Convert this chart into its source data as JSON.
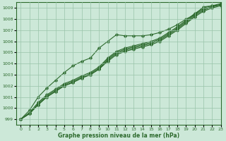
{
  "x": [
    0,
    1,
    2,
    3,
    4,
    5,
    6,
    7,
    8,
    9,
    10,
    11,
    12,
    13,
    14,
    15,
    16,
    17,
    18,
    19,
    20,
    21,
    22,
    23
  ],
  "line_high": [
    999.0,
    999.8,
    1001.0,
    1001.8,
    1002.5,
    1003.2,
    1003.8,
    1004.2,
    1004.5,
    1005.4,
    1006.0,
    1006.6,
    1006.5,
    1006.5,
    1006.5,
    1006.6,
    1006.8,
    1007.1,
    1007.5,
    1008.0,
    1008.4,
    1009.1,
    1009.2,
    1009.3
  ],
  "line_a": [
    999.0,
    999.5,
    1000.3,
    1001.0,
    1001.5,
    1002.0,
    1002.3,
    1002.7,
    1003.0,
    1003.5,
    1004.2,
    1004.8,
    1005.1,
    1005.3,
    1005.5,
    1005.7,
    1006.0,
    1006.5,
    1007.0,
    1007.6,
    1008.2,
    1008.7,
    1009.0,
    1009.2
  ],
  "line_b": [
    999.0,
    999.5,
    1000.3,
    1001.0,
    1001.5,
    1002.0,
    1002.3,
    1002.7,
    1003.0,
    1003.5,
    1004.3,
    1004.9,
    1005.2,
    1005.4,
    1005.6,
    1005.8,
    1006.1,
    1006.6,
    1007.1,
    1007.7,
    1008.3,
    1008.8,
    1009.1,
    1009.3
  ],
  "line_c": [
    999.0,
    999.5,
    1000.4,
    1001.1,
    1001.6,
    1002.1,
    1002.4,
    1002.8,
    1003.1,
    1003.6,
    1004.4,
    1005.0,
    1005.3,
    1005.5,
    1005.7,
    1005.9,
    1006.2,
    1006.7,
    1007.2,
    1007.8,
    1008.4,
    1008.9,
    1009.1,
    1009.3
  ],
  "line_d": [
    999.0,
    999.6,
    1000.5,
    1001.2,
    1001.7,
    1002.2,
    1002.5,
    1002.9,
    1003.2,
    1003.7,
    1004.5,
    1005.1,
    1005.4,
    1005.6,
    1005.8,
    1006.0,
    1006.3,
    1006.8,
    1007.3,
    1007.9,
    1008.5,
    1009.0,
    1009.2,
    1009.4
  ],
  "line_color": "#2d6a2d",
  "bg_color": "#cce8d8",
  "grid_color": "#99c4aa",
  "xlabel": "Graphe pression niveau de la mer (hPa)",
  "ylim": [
    998.5,
    1009.5
  ],
  "xlim": [
    -0.5,
    23
  ],
  "yticks": [
    999,
    1000,
    1001,
    1002,
    1003,
    1004,
    1005,
    1006,
    1007,
    1008,
    1009
  ],
  "xticks": [
    0,
    1,
    2,
    3,
    4,
    5,
    6,
    7,
    8,
    9,
    10,
    11,
    12,
    13,
    14,
    15,
    16,
    17,
    18,
    19,
    20,
    21,
    22,
    23
  ]
}
